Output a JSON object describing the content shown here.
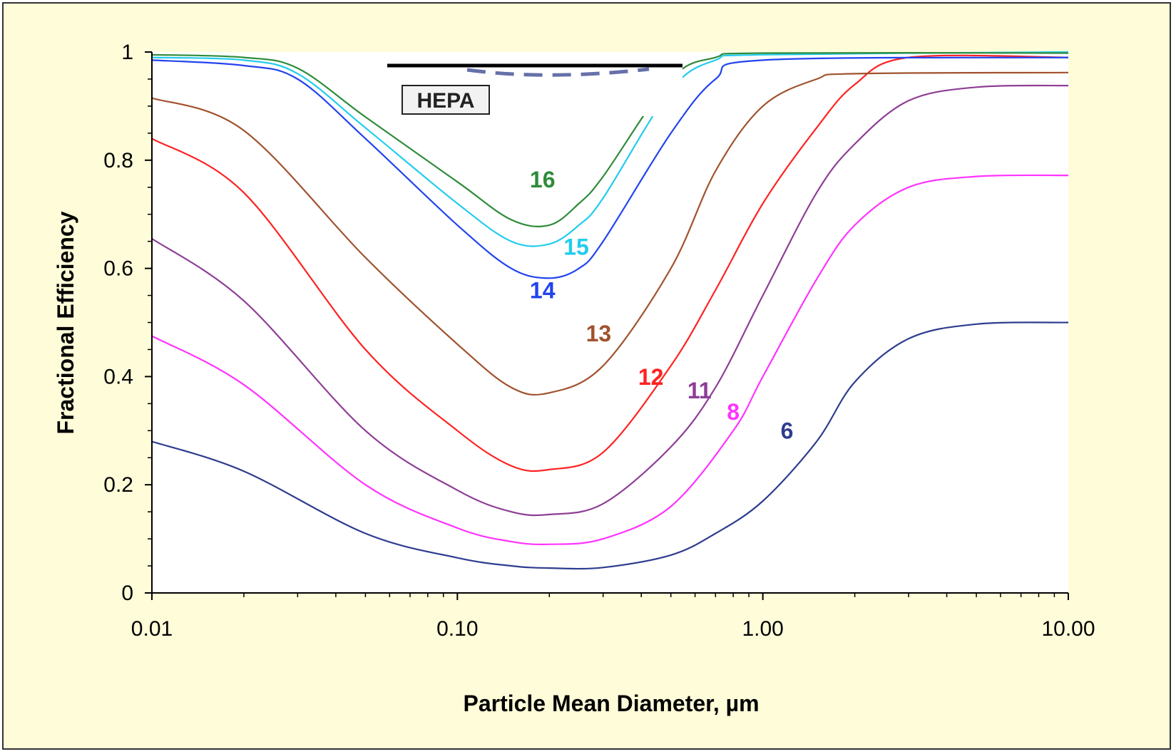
{
  "chart_data": {
    "type": "line",
    "title": "",
    "xlabel": "Particle Mean Diameter, µm",
    "ylabel": "Fractional Efficiency",
    "x_scale": "log",
    "xlim": [
      0.01,
      10
    ],
    "ylim": [
      0,
      1
    ],
    "x_ticks": [
      {
        "value": 0.01,
        "label": "0.01"
      },
      {
        "value": 0.1,
        "label": "0.10"
      },
      {
        "value": 1,
        "label": "1.00"
      },
      {
        "value": 10,
        "label": "10.00"
      }
    ],
    "y_ticks": [
      {
        "value": 0,
        "label": "0"
      },
      {
        "value": 0.2,
        "label": "0.2"
      },
      {
        "value": 0.4,
        "label": "0.4"
      },
      {
        "value": 0.6,
        "label": "0.6"
      },
      {
        "value": 0.8,
        "label": "0.8"
      },
      {
        "value": 1,
        "label": "1"
      }
    ],
    "grid": false,
    "legend_entry": {
      "label": "HEPA",
      "placement": "top-center"
    },
    "series": [
      {
        "name": "6",
        "color": "#2e3d8f",
        "points": [
          [
            0.01,
            0.28
          ],
          [
            0.02,
            0.225
          ],
          [
            0.05,
            0.11
          ],
          [
            0.1,
            0.065
          ],
          [
            0.15,
            0.05
          ],
          [
            0.2,
            0.046
          ],
          [
            0.3,
            0.047
          ],
          [
            0.5,
            0.07
          ],
          [
            0.7,
            0.11
          ],
          [
            1.0,
            0.17
          ],
          [
            1.5,
            0.28
          ],
          [
            2.0,
            0.39
          ],
          [
            3.0,
            0.47
          ],
          [
            5.0,
            0.497
          ],
          [
            10.0,
            0.5
          ]
        ]
      },
      {
        "name": "8",
        "color": "#ff33ff",
        "points": [
          [
            0.01,
            0.475
          ],
          [
            0.02,
            0.385
          ],
          [
            0.05,
            0.2
          ],
          [
            0.1,
            0.12
          ],
          [
            0.15,
            0.095
          ],
          [
            0.2,
            0.09
          ],
          [
            0.3,
            0.1
          ],
          [
            0.5,
            0.16
          ],
          [
            0.8,
            0.3
          ],
          [
            1.0,
            0.4
          ],
          [
            1.5,
            0.58
          ],
          [
            2.0,
            0.68
          ],
          [
            3.0,
            0.75
          ],
          [
            5.0,
            0.77
          ],
          [
            10.0,
            0.772
          ]
        ]
      },
      {
        "name": "11",
        "color": "#8e3e96",
        "points": [
          [
            0.01,
            0.655
          ],
          [
            0.02,
            0.54
          ],
          [
            0.05,
            0.3
          ],
          [
            0.1,
            0.19
          ],
          [
            0.15,
            0.15
          ],
          [
            0.2,
            0.145
          ],
          [
            0.3,
            0.165
          ],
          [
            0.5,
            0.27
          ],
          [
            0.7,
            0.38
          ],
          [
            1.0,
            0.55
          ],
          [
            1.5,
            0.74
          ],
          [
            2.0,
            0.83
          ],
          [
            3.0,
            0.91
          ],
          [
            5.0,
            0.935
          ],
          [
            10.0,
            0.938
          ]
        ]
      },
      {
        "name": "12",
        "color": "#ff2222",
        "points": [
          [
            0.01,
            0.84
          ],
          [
            0.02,
            0.74
          ],
          [
            0.05,
            0.45
          ],
          [
            0.1,
            0.3
          ],
          [
            0.15,
            0.235
          ],
          [
            0.2,
            0.228
          ],
          [
            0.3,
            0.26
          ],
          [
            0.5,
            0.42
          ],
          [
            0.7,
            0.56
          ],
          [
            1.0,
            0.72
          ],
          [
            1.5,
            0.86
          ],
          [
            2.0,
            0.94
          ],
          [
            3.0,
            0.99
          ],
          [
            10.0,
            0.99
          ]
        ]
      },
      {
        "name": "13",
        "color": "#a0522d",
        "points": [
          [
            0.01,
            0.915
          ],
          [
            0.02,
            0.855
          ],
          [
            0.05,
            0.62
          ],
          [
            0.1,
            0.46
          ],
          [
            0.15,
            0.38
          ],
          [
            0.2,
            0.37
          ],
          [
            0.3,
            0.42
          ],
          [
            0.5,
            0.6
          ],
          [
            0.7,
            0.78
          ],
          [
            1.0,
            0.9
          ],
          [
            1.5,
            0.95
          ],
          [
            2.0,
            0.96
          ],
          [
            10.0,
            0.962
          ]
        ]
      },
      {
        "name": "14",
        "color": "#2244ee",
        "points": [
          [
            0.01,
            0.985
          ],
          [
            0.02,
            0.975
          ],
          [
            0.03,
            0.95
          ],
          [
            0.05,
            0.84
          ],
          [
            0.1,
            0.68
          ],
          [
            0.15,
            0.6
          ],
          [
            0.2,
            0.582
          ],
          [
            0.25,
            0.6
          ],
          [
            0.3,
            0.65
          ],
          [
            0.5,
            0.85
          ],
          [
            0.7,
            0.95
          ],
          [
            1.0,
            0.985
          ],
          [
            10.0,
            0.99
          ]
        ]
      },
      {
        "name": "15",
        "color": "#22ccee",
        "points": [
          [
            0.01,
            0.99
          ],
          [
            0.02,
            0.985
          ],
          [
            0.03,
            0.96
          ],
          [
            0.05,
            0.86
          ],
          [
            0.1,
            0.72
          ],
          [
            0.15,
            0.65
          ],
          [
            0.2,
            0.645
          ],
          [
            0.25,
            0.68
          ],
          [
            0.3,
            0.73
          ],
          [
            0.5,
            0.93
          ],
          [
            0.7,
            0.985
          ],
          [
            1.0,
            0.995
          ],
          [
            10.0,
            1.0
          ]
        ]
      },
      {
        "name": "16",
        "color": "#2e8b3a",
        "points": [
          [
            0.01,
            0.995
          ],
          [
            0.02,
            0.99
          ],
          [
            0.03,
            0.97
          ],
          [
            0.05,
            0.88
          ],
          [
            0.1,
            0.76
          ],
          [
            0.15,
            0.69
          ],
          [
            0.2,
            0.68
          ],
          [
            0.25,
            0.72
          ],
          [
            0.3,
            0.77
          ],
          [
            0.5,
            0.95
          ],
          [
            0.7,
            0.99
          ],
          [
            1.0,
            0.998
          ],
          [
            10.0,
            0.998
          ]
        ]
      }
    ],
    "annotations": [
      {
        "text": "6",
        "color": "#2e3d8f",
        "x": 1.2,
        "y": 0.285
      },
      {
        "text": "8",
        "color": "#ff33ff",
        "x": 0.8,
        "y": 0.32
      },
      {
        "text": "11",
        "color": "#8e3e96",
        "x": 0.62,
        "y": 0.36
      },
      {
        "text": "12",
        "color": "#ff2222",
        "x": 0.43,
        "y": 0.385
      },
      {
        "text": "13",
        "color": "#a0522d",
        "x": 0.29,
        "y": 0.465
      },
      {
        "text": "14",
        "color": "#2244ee",
        "x": 0.19,
        "y": 0.545
      },
      {
        "text": "15",
        "color": "#22ccee",
        "x": 0.245,
        "y": 0.625
      },
      {
        "text": "16",
        "color": "#2e8b3a",
        "x": 0.19,
        "y": 0.75
      }
    ]
  }
}
